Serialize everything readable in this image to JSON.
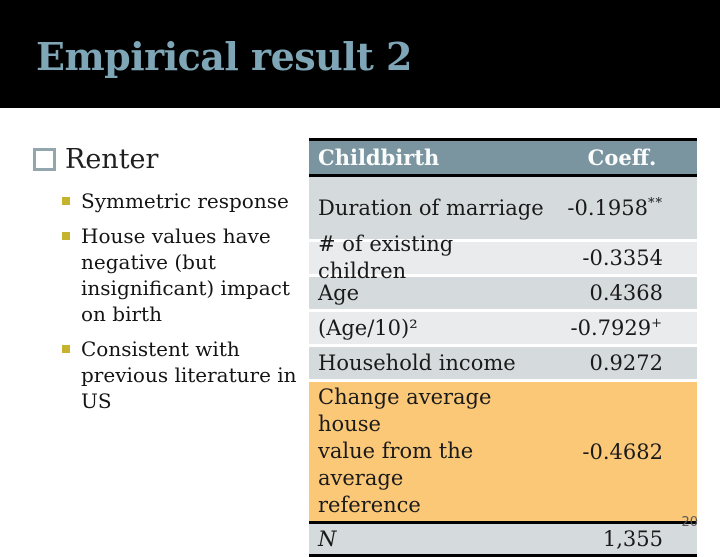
{
  "slide": {
    "title": "Empirical result 2",
    "page_number": "20"
  },
  "left": {
    "heading": "Renter",
    "bullets": [
      {
        "text": "Symmetric response"
      },
      {
        "text": "House values have\nnegative (but\ninsignificant) impact\non birth"
      },
      {
        "text": "Consistent with\nprevious literature in\nUS"
      }
    ]
  },
  "table": {
    "header": {
      "variable": "Childbirth",
      "coeff": "Coeff."
    },
    "rows": [
      {
        "label": "Duration of marriage",
        "value": "-0.1958",
        "sup": "**"
      },
      {
        "label": "# of existing children",
        "value": "-0.3354",
        "sup": ""
      },
      {
        "label": "Age",
        "value": "0.4368",
        "sup": ""
      },
      {
        "label": "(Age/10)²",
        "value": "-0.7929",
        "sup": "+"
      },
      {
        "label": "Household income",
        "value": "0.9272",
        "sup": ""
      },
      {
        "label": "Change average house\nvalue from the average\nreference",
        "value": "-0.4682",
        "sup": ""
      },
      {
        "label": "N",
        "value": "1,355",
        "sup": ""
      }
    ]
  },
  "colors": {
    "title_color": "#7EA6B6",
    "header_bg": "#7A959F",
    "highlight_row_bg": "#FBC878",
    "bullet_square": "#C5B32E"
  }
}
